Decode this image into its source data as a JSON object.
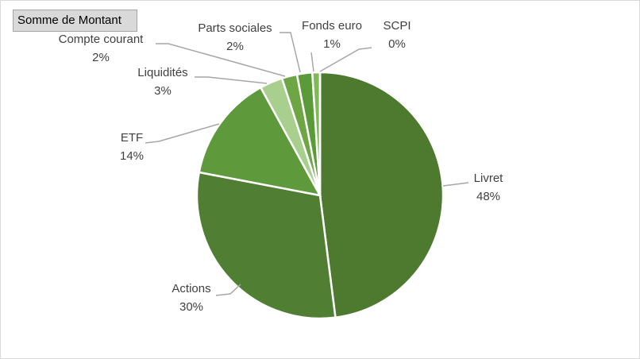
{
  "chart_data": {
    "type": "pie",
    "field_button": "Somme de Montant",
    "categories": [
      "Livret",
      "Actions",
      "ETF",
      "Liquidités",
      "Compte courant",
      "Parts sociales",
      "Fonds euro",
      "SCPI"
    ],
    "values": [
      48,
      30,
      14,
      3,
      2,
      2,
      1,
      0
    ],
    "value_labels": [
      "48%",
      "30%",
      "14%",
      "3%",
      "2%",
      "2%",
      "1%",
      "0%"
    ],
    "colors": [
      "#4e7a2f",
      "#507e32",
      "#5e9a3c",
      "#a9cf8e",
      "#6ea646",
      "#5a9a38",
      "#80b85a",
      "#4e7a2f"
    ]
  }
}
